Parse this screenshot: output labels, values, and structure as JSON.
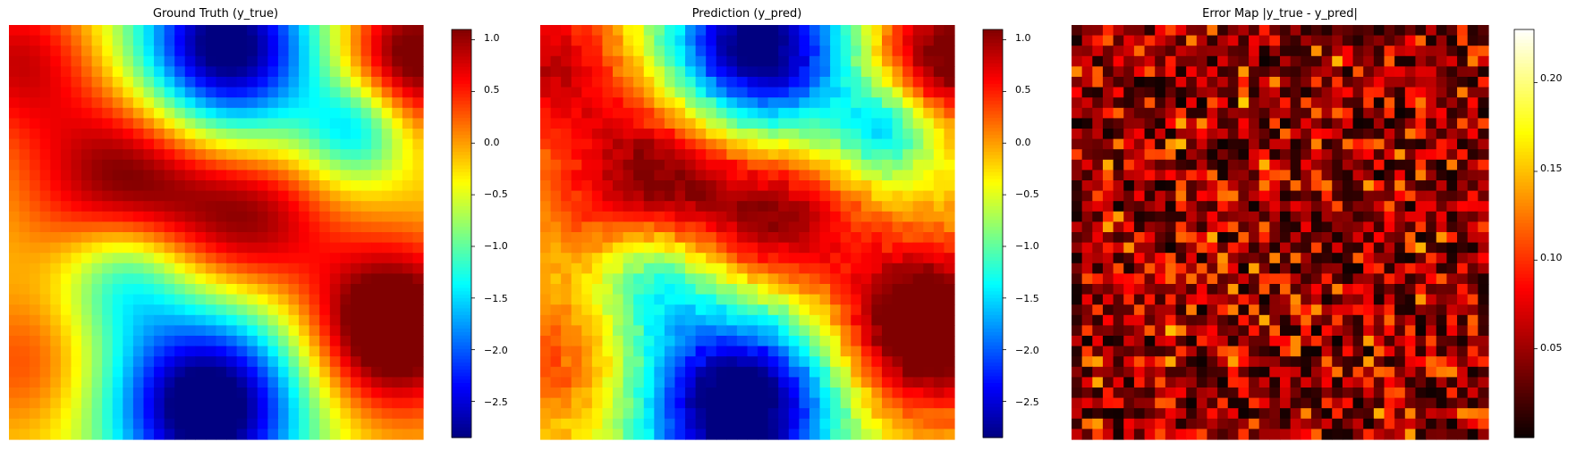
{
  "figure": {
    "width": 1762,
    "height": 504
  },
  "chart_data": [
    {
      "type": "heatmap",
      "title": "Ground Truth (y_true)",
      "grid_size": [
        40,
        40
      ],
      "colormap": "jet",
      "colorbar": {
        "range": [
          -2.85,
          1.1
        ],
        "ticks": [
          1.0,
          0.5,
          0.0,
          -0.5,
          -1.0,
          -1.5,
          -2.0,
          -2.5
        ],
        "tick_labels": [
          "1.0",
          "0.5",
          "0.0",
          "−0.5",
          "−1.0",
          "−1.5",
          "−2.0",
          "−2.5"
        ]
      },
      "field": {
        "kind": "smooth-field",
        "components": [
          {
            "cx": 0.52,
            "cy": 0.06,
            "amp": -2.9,
            "sigma": 0.16
          },
          {
            "cx": 0.48,
            "cy": 0.92,
            "amp": -3.0,
            "sigma": 0.17
          },
          {
            "cx": 0.3,
            "cy": 0.38,
            "amp": 1.6,
            "sigma": 0.17
          },
          {
            "cx": 0.92,
            "cy": 0.73,
            "amp": 2.0,
            "sigma": 0.14
          },
          {
            "cx": 0.97,
            "cy": 0.08,
            "amp": 1.6,
            "sigma": 0.12
          },
          {
            "cx": 0.02,
            "cy": 0.08,
            "amp": 1.0,
            "sigma": 0.13
          },
          {
            "cx": 0.28,
            "cy": 0.6,
            "amp": -1.3,
            "sigma": 0.11
          },
          {
            "cx": 0.84,
            "cy": 0.25,
            "amp": -1.3,
            "sigma": 0.09
          },
          {
            "cx": 0.6,
            "cy": 0.47,
            "amp": 1.1,
            "sigma": 0.13
          },
          {
            "cx": 0.05,
            "cy": 0.82,
            "amp": 0.6,
            "sigma": 0.12
          }
        ],
        "base": -0.25
      }
    },
    {
      "type": "heatmap",
      "title": "Prediction (y_pred)",
      "grid_size": [
        40,
        40
      ],
      "colormap": "jet",
      "colorbar": {
        "range": [
          -2.85,
          1.1
        ],
        "ticks": [
          1.0,
          0.5,
          0.0,
          -0.5,
          -1.0,
          -1.5,
          -2.0,
          -2.5
        ],
        "tick_labels": [
          "1.0",
          "0.5",
          "0.0",
          "−0.5",
          "−1.0",
          "−1.5",
          "−2.0",
          "−2.5"
        ]
      },
      "field": {
        "kind": "ground-truth-plus-noise",
        "noise_amplitude": 0.12
      }
    },
    {
      "type": "heatmap",
      "title": "Error Map |y_true - y_pred|",
      "grid_size": [
        40,
        40
      ],
      "colormap": "hot",
      "colorbar": {
        "range": [
          0.0,
          0.23
        ],
        "ticks": [
          0.2,
          0.15,
          0.1,
          0.05
        ],
        "tick_labels": [
          "0.20",
          "0.15",
          "0.10",
          "0.05"
        ]
      },
      "field": {
        "kind": "absolute-difference"
      }
    }
  ]
}
